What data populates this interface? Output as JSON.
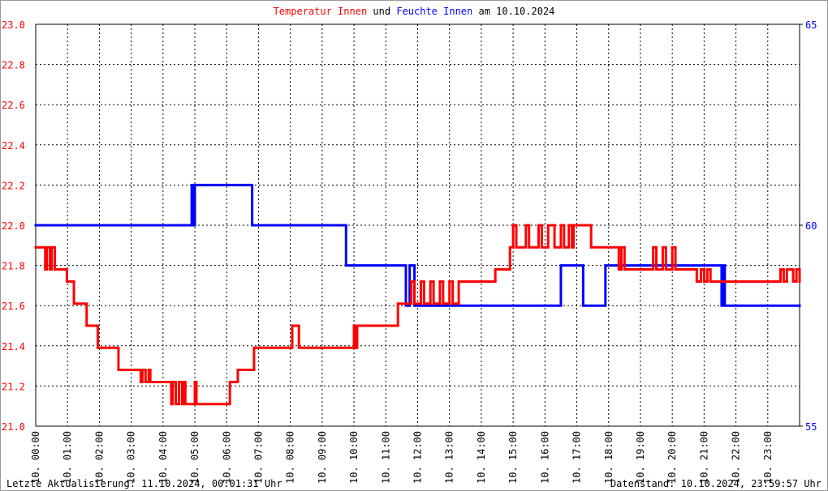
{
  "chart_data": {
    "type": "step",
    "title_parts": [
      "und",
      "am 10.10.2024"
    ],
    "footer_left": "Letzte Aktualisierung: 11.10.2024, 00:01:31 Uhr",
    "footer_right": "Datenstand: 10.10.2024, 23:59:57 Uhr",
    "xlim": [
      0,
      24
    ],
    "xticks": [
      {
        "value": 0,
        "label": "10. 00:00"
      },
      {
        "value": 1,
        "label": "10. 01:00"
      },
      {
        "value": 2,
        "label": "10. 02:00"
      },
      {
        "value": 3,
        "label": "10. 03:00"
      },
      {
        "value": 4,
        "label": "10. 04:00"
      },
      {
        "value": 5,
        "label": "10. 05:00"
      },
      {
        "value": 6,
        "label": "10. 06:00"
      },
      {
        "value": 7,
        "label": "10. 07:00"
      },
      {
        "value": 8,
        "label": "10. 08:00"
      },
      {
        "value": 9,
        "label": "10. 09:00"
      },
      {
        "value": 10,
        "label": "10. 10:00"
      },
      {
        "value": 11,
        "label": "10. 11:00"
      },
      {
        "value": 12,
        "label": "10. 12:00"
      },
      {
        "value": 13,
        "label": "10. 13:00"
      },
      {
        "value": 14,
        "label": "10. 14:00"
      },
      {
        "value": 15,
        "label": "10. 15:00"
      },
      {
        "value": 16,
        "label": "10. 16:00"
      },
      {
        "value": 17,
        "label": "10. 17:00"
      },
      {
        "value": 18,
        "label": "10. 18:00"
      },
      {
        "value": 19,
        "label": "10. 19:00"
      },
      {
        "value": 20,
        "label": "10. 20:00"
      },
      {
        "value": 21,
        "label": "10. 21:00"
      },
      {
        "value": 22,
        "label": "10. 22:00"
      },
      {
        "value": 23,
        "label": "10. 23:00"
      }
    ],
    "ylim": [
      21,
      23
    ],
    "yticks": [
      {
        "value": 21,
        "label": "21.0"
      },
      21.2,
      21.4,
      21.6,
      21.8,
      {
        "value": 22,
        "label": "22.0"
      },
      22.2,
      22.4,
      22.6,
      22.8,
      {
        "value": 23,
        "label": "23.0"
      }
    ],
    "y2lim": [
      55,
      65
    ],
    "y2ticks": [
      55,
      60,
      65
    ],
    "grid": true,
    "series": [
      {
        "name": "Temperatur Innen",
        "color": "#ff0000",
        "axis": "y",
        "x": [
          0,
          0.3,
          0.35,
          0.45,
          0.5,
          0.6,
          0.98,
          1.2,
          1.6,
          1.95,
          2.6,
          3.3,
          3.35,
          3.45,
          3.55,
          3.6,
          4.26,
          4.3,
          4.4,
          4.5,
          4.6,
          4.65,
          4.7,
          5.0,
          5.05,
          6.1,
          6.35,
          6.86,
          8.06,
          8.27,
          10.0,
          10.05,
          10.1,
          11.38,
          11.8,
          11.9,
          12.1,
          12.2,
          12.4,
          12.5,
          12.7,
          12.8,
          13.0,
          13.1,
          13.29,
          14.44,
          14.9,
          15.0,
          15.1,
          15.4,
          15.5,
          15.8,
          15.9,
          16.1,
          16.3,
          16.5,
          16.6,
          16.75,
          16.85,
          16.9,
          17.45,
          18.32,
          18.4,
          18.5,
          19.4,
          19.5,
          19.7,
          19.8,
          20.0,
          20.1,
          20.77,
          20.9,
          21.0,
          21.1,
          21.2,
          23.4,
          23.5,
          23.6,
          23.8,
          23.9,
          24
        ],
        "values": [
          21.89,
          21.78,
          21.89,
          21.78,
          21.89,
          21.78,
          21.72,
          21.61,
          21.5,
          21.39,
          21.28,
          21.22,
          21.28,
          21.22,
          21.28,
          21.22,
          21.11,
          21.22,
          21.11,
          21.22,
          21.11,
          21.22,
          21.11,
          21.22,
          21.11,
          21.22,
          21.28,
          21.39,
          21.5,
          21.39,
          21.5,
          21.39,
          21.5,
          21.61,
          21.72,
          21.61,
          21.72,
          21.61,
          21.72,
          21.61,
          21.72,
          21.61,
          21.72,
          21.61,
          21.72,
          21.78,
          21.89,
          22.0,
          21.89,
          22.0,
          21.89,
          22.0,
          21.89,
          22.0,
          21.89,
          22.0,
          21.89,
          22.0,
          21.89,
          22.0,
          21.89,
          21.78,
          21.89,
          21.78,
          21.89,
          21.78,
          21.89,
          21.78,
          21.89,
          21.78,
          21.72,
          21.78,
          21.72,
          21.78,
          21.72,
          21.78,
          21.72,
          21.78,
          21.72,
          21.78,
          21.72
        ]
      },
      {
        "name": "Feuchte Innen",
        "color": "#0000ff",
        "axis": "y2",
        "x": [
          0,
          4.9,
          4.95,
          5.0,
          6.8,
          9.75,
          11.63,
          11.75,
          11.9,
          16.5,
          17.2,
          17.9,
          21.55,
          21.6,
          21.65,
          24
        ],
        "values": [
          60,
          61,
          60,
          61,
          60,
          59,
          58,
          59,
          58,
          59,
          58,
          59,
          58,
          59,
          58,
          58
        ]
      }
    ]
  }
}
